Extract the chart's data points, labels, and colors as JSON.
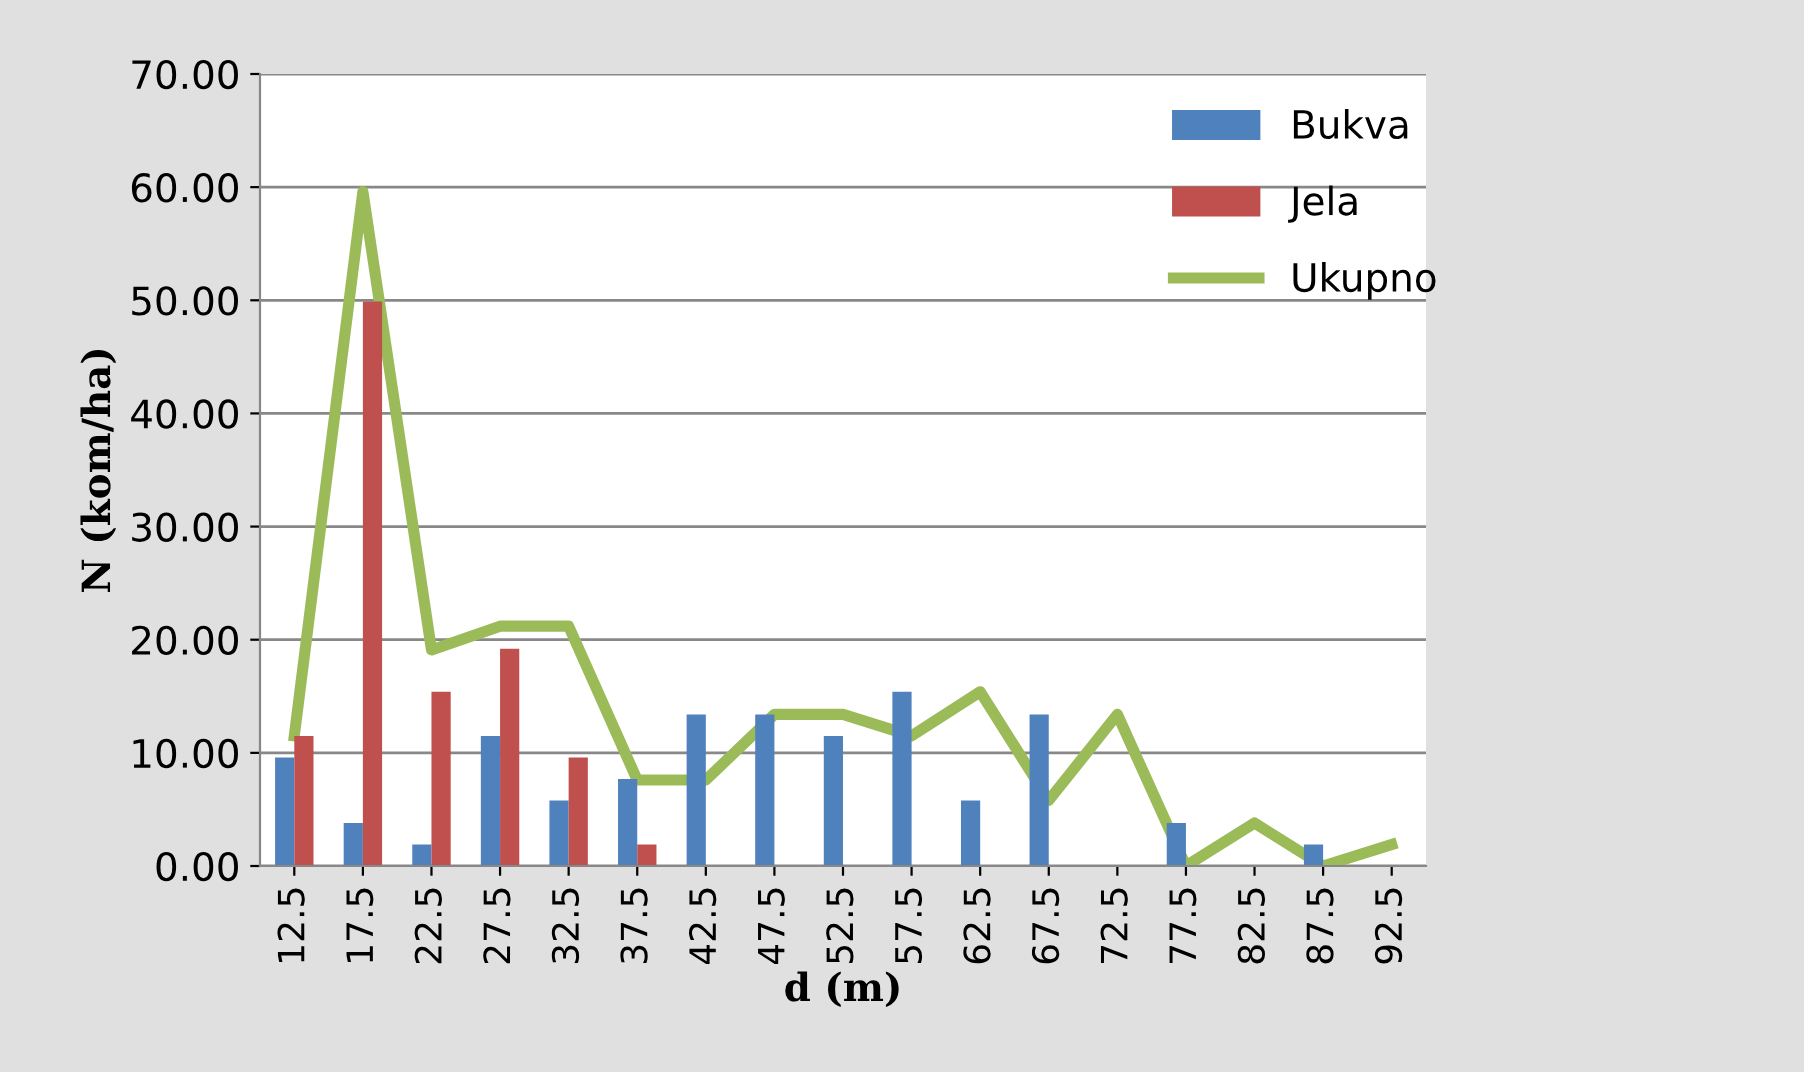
{
  "chart_data": {
    "type": "bar",
    "xlabel": "d (m)",
    "ylabel": "N (kom/ha)",
    "categories": [
      "12.5",
      "17.5",
      "22.5",
      "27.5",
      "32.5",
      "37.5",
      "42.5",
      "47.5",
      "52.5",
      "57.5",
      "62.5",
      "67.5",
      "72.5",
      "77.5",
      "82.5",
      "87.5",
      "92.5"
    ],
    "series": [
      {
        "name": "Bukva",
        "color": "#4f81bd",
        "values": [
          9.6,
          3.8,
          1.9,
          11.5,
          5.8,
          7.7,
          13.4,
          13.4,
          11.5,
          15.4,
          5.8,
          13.4,
          0,
          3.8,
          0,
          1.9,
          0
        ]
      },
      {
        "name": "Jela",
        "color": "#c0504d",
        "values": [
          11.5,
          49.9,
          15.4,
          19.2,
          9.6,
          1.9,
          0,
          0,
          0,
          0,
          0,
          0,
          0,
          0,
          0,
          0,
          0
        ]
      },
      {
        "name": "Ukupno",
        "type": "line",
        "color": "#9bbb59",
        "values": [
          11.5,
          59.6,
          19.1,
          21.2,
          21.2,
          7.6,
          7.6,
          13.4,
          13.4,
          11.5,
          15.4,
          5.8,
          13.4,
          0,
          3.8,
          0,
          1.9
        ]
      }
    ],
    "ylim": [
      0,
      70
    ],
    "yticks": [
      {
        "value": 0,
        "label": "0.00"
      },
      {
        "value": 10,
        "label": "10.00"
      },
      {
        "value": 20,
        "label": "20.00"
      },
      {
        "value": 30,
        "label": "30.00"
      },
      {
        "value": 40,
        "label": "40.00"
      },
      {
        "value": 50,
        "label": "50.00"
      },
      {
        "value": 60,
        "label": "60.00"
      },
      {
        "value": 70,
        "label": "70.00"
      }
    ],
    "grid": "y",
    "legend": "top right"
  }
}
